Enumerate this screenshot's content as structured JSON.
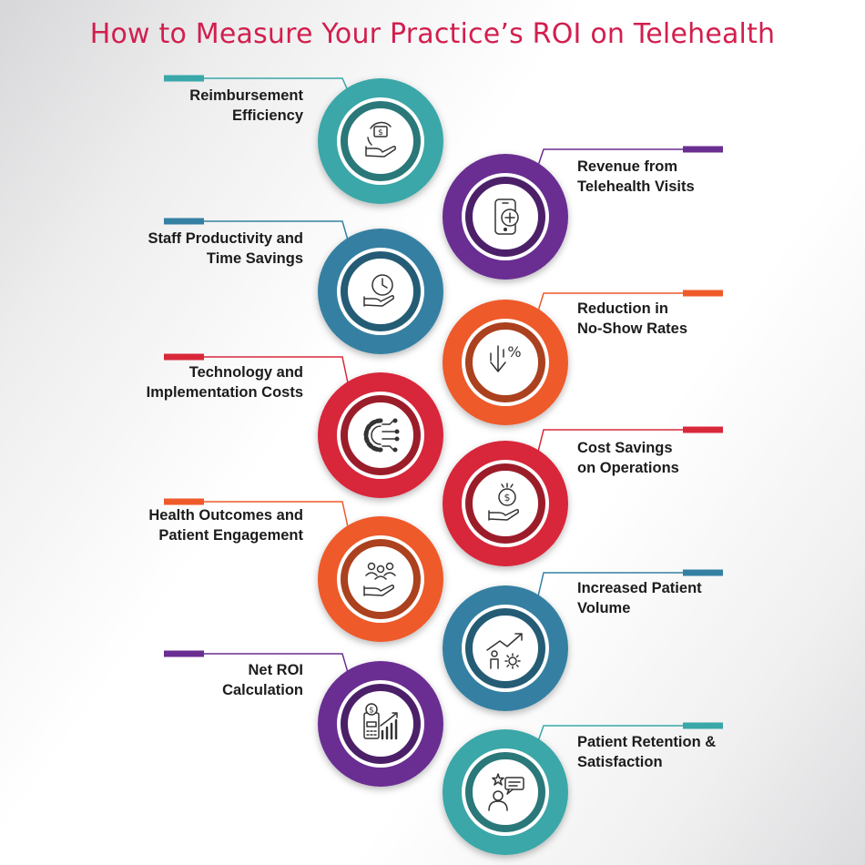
{
  "title": "How to Measure Your Practice’s ROI on Telehealth",
  "steps": [
    {
      "label_line1": "Reimbursement",
      "label_line2": "Efficiency",
      "icon": "dollar-hand-icon",
      "color": "#3aa7a8"
    },
    {
      "label_line1": "Revenue from",
      "label_line2": "Telehealth Visits",
      "icon": "smartphone-medical-icon",
      "color": "#6a2d92"
    },
    {
      "label_line1": "Staff Productivity and",
      "label_line2": "Time Savings",
      "icon": "clock-hand-icon",
      "color": "#3480a2"
    },
    {
      "label_line1": "Reduction in",
      "label_line2": "No-Show Rates",
      "icon": "percent-down-icon",
      "color": "#ee5a2a"
    },
    {
      "label_line1": "Technology and",
      "label_line2": "Implementation Costs",
      "icon": "gear-circuit-icon",
      "color": "#d8283a"
    },
    {
      "label_line1": "Cost Savings",
      "label_line2": "on Operations",
      "icon": "coin-hand-icon",
      "color": "#d8283a"
    },
    {
      "label_line1": "Health Outcomes and",
      "label_line2": "Patient Engagement",
      "icon": "people-hand-icon",
      "color": "#ee5a2a"
    },
    {
      "label_line1": "Increased Patient",
      "label_line2": "Volume",
      "icon": "growth-person-icon",
      "color": "#3480a2"
    },
    {
      "label_line1": "Net ROI",
      "label_line2": "Calculation",
      "icon": "calculator-chart-icon",
      "color": "#6a2d92"
    },
    {
      "label_line1": "Patient Retention &",
      "label_line2": "Satisfaction",
      "icon": "person-chat-star-icon",
      "color": "#3aa7a8"
    }
  ]
}
